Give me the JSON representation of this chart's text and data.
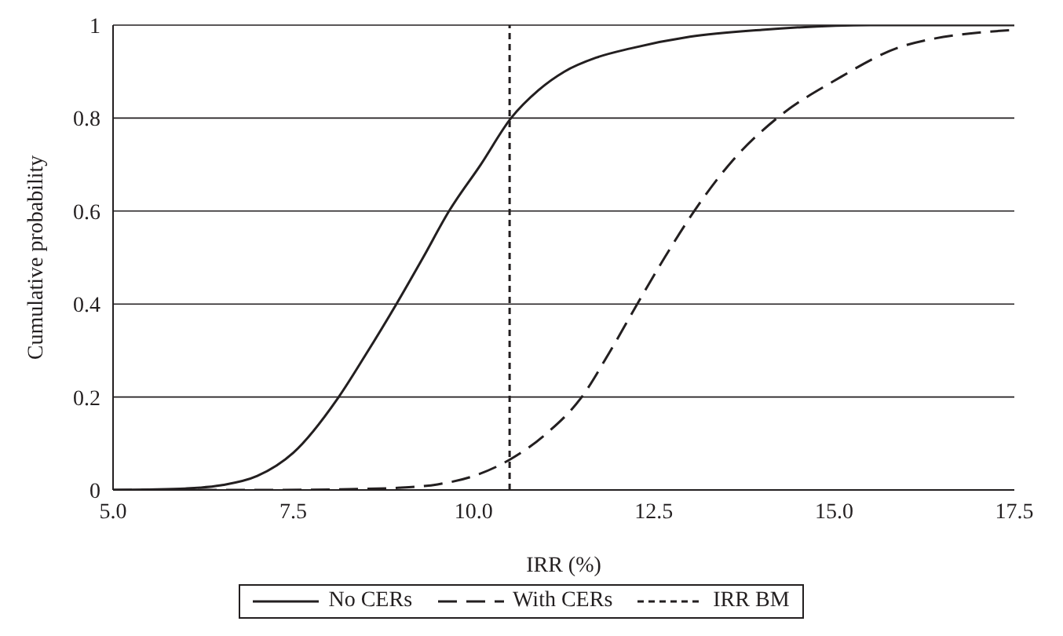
{
  "chart_data": {
    "type": "line",
    "xlabel": "IRR (%)",
    "ylabel": "Cumulative probability",
    "xlim": [
      5,
      17.5
    ],
    "xticks": [
      {
        "value": 5,
        "label": "5.0"
      },
      {
        "value": 7.5,
        "label": "7.5"
      },
      {
        "value": 10,
        "label": "10.0"
      },
      {
        "value": 12.5,
        "label": "12.5"
      },
      {
        "value": 15,
        "label": "15.0"
      },
      {
        "value": 17.5,
        "label": "17.5"
      }
    ],
    "ylim": [
      0,
      1
    ],
    "yticks": [
      0,
      0.2,
      0.4,
      0.6,
      0.8,
      1
    ],
    "grid": "y",
    "legend": "bottom",
    "marker": "none",
    "series": [
      {
        "name": "No CERs",
        "color": "#231f20",
        "line_style": "solid",
        "x": [
          5,
          5.5,
          6,
          6.5,
          7,
          7.5,
          8.13,
          8.5,
          8.93,
          9.3,
          9.66,
          10.1,
          10.52,
          10.9,
          11.26,
          11.7,
          12.18,
          13,
          14,
          15.5,
          17.5
        ],
        "values": [
          0,
          0.001,
          0.003,
          0.01,
          0.03,
          0.08,
          0.2,
          0.29,
          0.4,
          0.5,
          0.6,
          0.7,
          0.8,
          0.86,
          0.9,
          0.93,
          0.95,
          0.975,
          0.99,
          1,
          1
        ]
      },
      {
        "name": "With CERs",
        "color": "#231f20",
        "line_style": "dashed",
        "x": [
          5,
          7,
          8,
          9,
          9.5,
          10,
          10.5,
          11,
          11.5,
          11.9,
          12.27,
          12.65,
          13.06,
          13.6,
          14.21,
          15,
          16,
          17.5
        ],
        "values": [
          0,
          0,
          0.001,
          0.005,
          0.012,
          0.03,
          0.065,
          0.12,
          0.2,
          0.3,
          0.4,
          0.5,
          0.6,
          0.71,
          0.8,
          0.88,
          0.957,
          0.99
        ]
      }
    ],
    "ref_lines": [
      {
        "axis": "x",
        "value": 10.5,
        "label": "IRR BM",
        "color": "#231f20",
        "line_style": "dashed"
      }
    ]
  }
}
